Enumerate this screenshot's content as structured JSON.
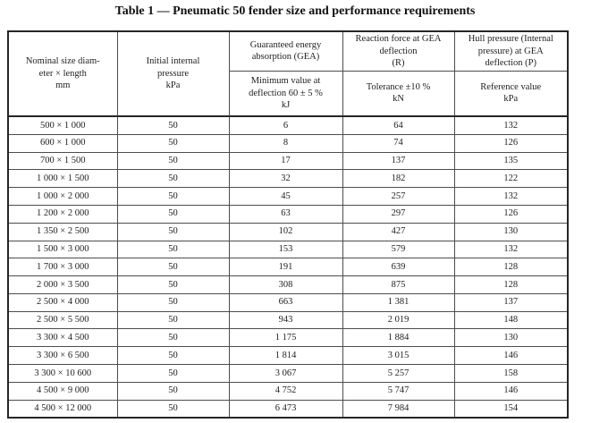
{
  "title": "Table 1 — Pneumatic 50 fender size and performance requirements",
  "colors": {
    "page_background": "#ffffff",
    "outer_border": "#262626",
    "grid_line": "#4d4d4d",
    "text": "#222222"
  },
  "table": {
    "header": {
      "nominal_size": "Nominal size diam-\neter × length\nmm",
      "initial_pressure": "Initial internal\npressure\nkPa",
      "gea": "Guaranteed energy\nabsorption (GEA)",
      "gea_sub": "Minimum value at\ndeflection 60 ± 5 %\nkJ",
      "reaction": "Reaction force at GEA\ndeflection\n(R)",
      "reaction_sub": "Tolerance ±10 %\nkN",
      "hull": "Hull pressure (Internal\npressure) at GEA\ndeflection (P)",
      "hull_sub": "Reference value\nkPa"
    },
    "rows": [
      [
        "500 × 1 000",
        "50",
        "6",
        "64",
        "132"
      ],
      [
        "600 × 1 000",
        "50",
        "8",
        "74",
        "126"
      ],
      [
        "700 × 1 500",
        "50",
        "17",
        "137",
        "135"
      ],
      [
        "1 000 × 1 500",
        "50",
        "32",
        "182",
        "122"
      ],
      [
        "1 000 × 2 000",
        "50",
        "45",
        "257",
        "132"
      ],
      [
        "1 200 × 2 000",
        "50",
        "63",
        "297",
        "126"
      ],
      [
        "1 350 × 2 500",
        "50",
        "102",
        "427",
        "130"
      ],
      [
        "1 500 × 3 000",
        "50",
        "153",
        "579",
        "132"
      ],
      [
        "1 700 × 3 000",
        "50",
        "191",
        "639",
        "128"
      ],
      [
        "2 000 × 3 500",
        "50",
        "308",
        "875",
        "128"
      ],
      [
        "2 500 × 4 000",
        "50",
        "663",
        "1 381",
        "137"
      ],
      [
        "2 500 × 5 500",
        "50",
        "943",
        "2 019",
        "148"
      ],
      [
        "3 300 × 4 500",
        "50",
        "1 175",
        "1 884",
        "130"
      ],
      [
        "3 300 × 6 500",
        "50",
        "1 814",
        "3 015",
        "146"
      ],
      [
        "3 300 × 10 600",
        "50",
        "3 067",
        "5 257",
        "158"
      ],
      [
        "4 500 × 9 000",
        "50",
        "4 752",
        "5 747",
        "146"
      ],
      [
        "4 500 × 12 000",
        "50",
        "6 473",
        "7 984",
        "154"
      ]
    ]
  }
}
